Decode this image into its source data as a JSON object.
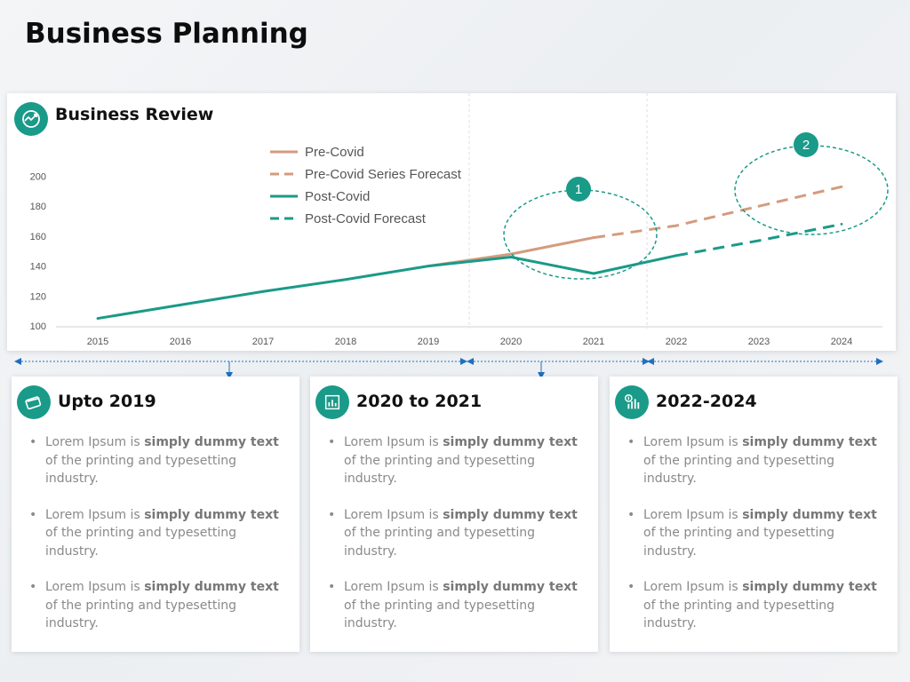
{
  "page": {
    "title": "Business Planning"
  },
  "chart_card": {
    "title": "Business Review",
    "icon": "globe-growth-icon"
  },
  "colors": {
    "pre_covid": "#d49b7f",
    "post_covid": "#1a9a88",
    "accent": "#1a9a88"
  },
  "chart_data": {
    "type": "line",
    "title": "Business Review",
    "xlabel": "",
    "ylabel": "",
    "x": [
      "2015",
      "2016",
      "2017",
      "2018",
      "2019",
      "2020",
      "2021",
      "2022",
      "2023",
      "2024"
    ],
    "yticks": [
      100,
      120,
      140,
      160,
      180,
      200
    ],
    "ylim": [
      100,
      205
    ],
    "legend_position": "top-left",
    "series": [
      {
        "name": "Pre-Covid",
        "style": "solid",
        "color": "#d49b7f",
        "points": [
          [
            "2019",
            140
          ],
          [
            "2020",
            148
          ],
          [
            "2021",
            159
          ]
        ]
      },
      {
        "name": "Pre-Covid Series Forecast",
        "style": "dashed",
        "color": "#d49b7f",
        "points": [
          [
            "2021",
            159
          ],
          [
            "2022",
            167
          ],
          [
            "2023",
            180
          ],
          [
            "2024",
            193
          ]
        ]
      },
      {
        "name": "Post-Covid",
        "style": "solid",
        "color": "#1a9a88",
        "points": [
          [
            "2015",
            105
          ],
          [
            "2016",
            114
          ],
          [
            "2017",
            123
          ],
          [
            "2018",
            131
          ],
          [
            "2019",
            140
          ],
          [
            "2020",
            146
          ],
          [
            "2021",
            135
          ],
          [
            "2022",
            147
          ]
        ]
      },
      {
        "name": "Post-Covid Forecast",
        "style": "dashed",
        "color": "#1a9a88",
        "points": [
          [
            "2022",
            147
          ],
          [
            "2023",
            157
          ],
          [
            "2024",
            168
          ]
        ]
      }
    ],
    "annotations": [
      {
        "label": "1",
        "near_x": "2021",
        "near_y": 156
      },
      {
        "label": "2",
        "near_x": "2024",
        "near_y": 182
      }
    ]
  },
  "periods": [
    {
      "title": "Upto 2019",
      "icon": "credit-card-icon",
      "bullets": [
        {
          "lead": "Lorem Ipsum is ",
          "bold": "simply dummy text",
          "tail": " of the printing and typesetting industry."
        },
        {
          "lead": "Lorem Ipsum is ",
          "bold": "simply dummy text",
          "tail": " of the printing and typesetting industry."
        },
        {
          "lead": "Lorem Ipsum is ",
          "bold": "simply dummy text",
          "tail": " of the printing and typesetting industry."
        }
      ]
    },
    {
      "title": "2020 to 2021",
      "icon": "bar-chart-icon",
      "bullets": [
        {
          "lead": "Lorem Ipsum is ",
          "bold": "simply dummy text",
          "tail": " of the printing and typesetting industry."
        },
        {
          "lead": "Lorem Ipsum is ",
          "bold": "simply dummy text",
          "tail": " of the printing and typesetting industry."
        },
        {
          "lead": "Lorem Ipsum is ",
          "bold": "simply dummy text",
          "tail": " of the printing and typesetting industry."
        }
      ]
    },
    {
      "title": "2022-2024",
      "icon": "dollar-chart-icon",
      "bullets": [
        {
          "lead": "Lorem Ipsum is ",
          "bold": "simply dummy text",
          "tail": " of the printing and typesetting industry."
        },
        {
          "lead": "Lorem Ipsum is ",
          "bold": "simply dummy text",
          "tail": " of the printing and typesetting industry."
        },
        {
          "lead": "Lorem Ipsum is ",
          "bold": "simply dummy text",
          "tail": " of the printing and typesetting industry."
        }
      ]
    }
  ]
}
